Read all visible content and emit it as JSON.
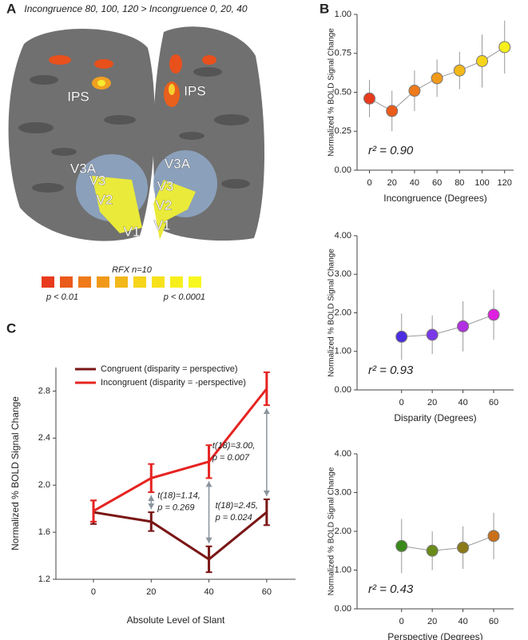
{
  "panels": [
    "A",
    "B",
    "C"
  ],
  "brain": {
    "title": "Incongruence 80, 100, 120 > Incongruence 0, 20, 40",
    "labels": [
      "IPS",
      "IPS",
      "V3A",
      "V3",
      "V2",
      "V1",
      "V3A",
      "V3",
      "V2",
      "V1"
    ]
  },
  "colorbar": {
    "title": "RFX n=10",
    "low": "p < 0.01",
    "high": "p < 0.0001"
  },
  "chart_data": [
    {
      "type": "line",
      "xlabel": "Incongruence (Degrees)",
      "ylabel": "Normalized % BOLD Signal Change",
      "annotation": "r² = 0.90",
      "x": [
        0,
        20,
        40,
        60,
        80,
        100,
        120
      ],
      "xlim": [
        -11,
        128
      ],
      "xticks": [
        0,
        20,
        40,
        60,
        80,
        100,
        120
      ],
      "ylim": [
        0,
        1
      ],
      "yticks": [
        {
          "value": 0,
          "label": "0.00"
        },
        {
          "value": 0.25,
          "label": "0.25"
        },
        {
          "value": 0.5,
          "label": "0.50"
        },
        {
          "value": 0.75,
          "label": "0.75"
        },
        {
          "value": 1,
          "label": "1.00"
        }
      ],
      "series": [
        {
          "color": "#999999",
          "values": [
            0.46,
            0.38,
            0.51,
            0.59,
            0.64,
            0.7,
            0.79
          ],
          "errors": [
            0.12,
            0.13,
            0.13,
            0.12,
            0.12,
            0.17,
            0.17
          ],
          "marker_colors": [
            "#e83a1c",
            "#ea5a1a",
            "#ee7a1a",
            "#f19a1a",
            "#f3b81a",
            "#f5d41a",
            "#f7ef1c"
          ]
        }
      ]
    },
    {
      "type": "line",
      "xlabel": "Disparity (Degrees)",
      "ylabel": "Normalized % BOLD Signal Change",
      "annotation": "r² = 0.93",
      "x": [
        0,
        20,
        40,
        60
      ],
      "xlim": [
        -29,
        73
      ],
      "xticks": [
        0,
        20,
        40,
        60
      ],
      "ylim": [
        0,
        4
      ],
      "yticks": [
        {
          "value": 0,
          "label": "0.00"
        },
        {
          "value": 1,
          "label": "1.00"
        },
        {
          "value": 2,
          "label": "2.00"
        },
        {
          "value": 3,
          "label": "3.00"
        },
        {
          "value": 4,
          "label": "4.00"
        }
      ],
      "series": [
        {
          "color": "#999999",
          "values": [
            1.38,
            1.43,
            1.65,
            1.95
          ],
          "errors": [
            0.6,
            0.5,
            0.65,
            0.65
          ],
          "marker_colors": [
            "#4a2ee0",
            "#7a38e8",
            "#b030e0",
            "#e020e0"
          ]
        }
      ]
    },
    {
      "type": "line",
      "xlabel": "Perspective (Degrees)",
      "ylabel": "Normalized % BOLD Signal Change",
      "annotation": "r² = 0.43",
      "x": [
        0,
        20,
        40,
        60
      ],
      "xlim": [
        -29,
        73
      ],
      "xticks": [
        0,
        20,
        40,
        60
      ],
      "ylim": [
        0,
        4
      ],
      "yticks": [
        {
          "value": 0,
          "label": "0.00"
        },
        {
          "value": 1,
          "label": "1.00"
        },
        {
          "value": 2,
          "label": "2.00"
        },
        {
          "value": 3,
          "label": "3.00"
        },
        {
          "value": 4,
          "label": "4.00"
        }
      ],
      "series": [
        {
          "color": "#999999",
          "values": [
            1.62,
            1.5,
            1.58,
            1.88
          ],
          "errors": [
            0.7,
            0.5,
            0.55,
            0.6
          ],
          "marker_colors": [
            "#3a8a1a",
            "#6a8a1a",
            "#8a7a1a",
            "#c8701a"
          ]
        }
      ]
    },
    {
      "type": "line",
      "xlabel": "Absolute Level of Slant",
      "ylabel": "Normalized % BOLD Signal Change",
      "x": [
        0,
        20,
        40,
        60
      ],
      "xlim": [
        -13,
        70
      ],
      "xticks": [
        0,
        20,
        40,
        60
      ],
      "ylim": [
        1.2,
        3.0
      ],
      "yticks": [
        1.2,
        1.6,
        {
          "value": 2,
          "label": "2.0"
        },
        2.4,
        2.8
      ],
      "series": [
        {
          "name": "Congruent (disparity = perspective)",
          "color": "#7a1616",
          "values": [
            1.77,
            1.69,
            1.37,
            1.77
          ],
          "errors": [
            0.1,
            0.08,
            0.11,
            0.11
          ]
        },
        {
          "name": "Incongruent (disparity = -perspective)",
          "color": "#e52421",
          "values": [
            1.78,
            2.06,
            2.2,
            2.82
          ],
          "errors": [
            0.09,
            0.12,
            0.14,
            0.14
          ]
        }
      ],
      "tests": [
        [
          "t(18)=1.14,",
          "p = 0.269"
        ],
        [
          "t(18)=2.45,",
          "p = 0.024"
        ],
        [
          "t(18)=3.00,",
          "p = 0.007"
        ]
      ]
    }
  ]
}
